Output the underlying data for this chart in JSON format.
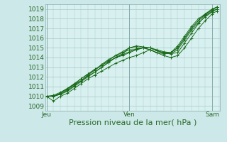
{
  "bg_color": "#cce8e8",
  "plot_bg_color": "#d8f0f0",
  "grid_color": "#a8c8c8",
  "line_color": "#1a6b1a",
  "marker_color": "#1a6b1a",
  "xlabel": "Pression niveau de la mer( hPa )",
  "xtick_labels": [
    "Jeu",
    "Ven",
    "Sam"
  ],
  "xtick_positions": [
    0,
    144,
    288
  ],
  "ytick_min": 1009,
  "ytick_max": 1019,
  "xlim": [
    -2,
    302
  ],
  "ylim": [
    1008.5,
    1019.5
  ],
  "x_label_fontsize": 8,
  "tick_fontsize": 6.5,
  "lines": [
    {
      "x": [
        0,
        12,
        24,
        36,
        48,
        60,
        72,
        84,
        96,
        108,
        120,
        132,
        144,
        156,
        168,
        180,
        192,
        204,
        216,
        228,
        240,
        252,
        264,
        276,
        288,
        296
      ],
      "y": [
        1010.0,
        1010.0,
        1010.2,
        1010.5,
        1011.0,
        1011.5,
        1012.0,
        1012.5,
        1013.0,
        1013.5,
        1014.0,
        1014.2,
        1014.5,
        1014.8,
        1015.0,
        1015.0,
        1014.8,
        1014.6,
        1014.5,
        1015.0,
        1016.0,
        1017.0,
        1017.8,
        1018.5,
        1019.0,
        1019.2
      ]
    },
    {
      "x": [
        0,
        12,
        24,
        36,
        48,
        60,
        72,
        84,
        96,
        108,
        120,
        132,
        144,
        156,
        168,
        180,
        192,
        204,
        216,
        228,
        240,
        252,
        264,
        276,
        288,
        296
      ],
      "y": [
        1010.0,
        1010.1,
        1010.4,
        1010.8,
        1011.2,
        1011.8,
        1012.3,
        1012.7,
        1013.2,
        1013.6,
        1014.0,
        1014.3,
        1014.6,
        1014.9,
        1015.0,
        1015.0,
        1014.7,
        1014.5,
        1014.4,
        1014.5,
        1015.5,
        1016.5,
        1017.5,
        1018.3,
        1018.8,
        1019.0
      ]
    },
    {
      "x": [
        0,
        12,
        24,
        36,
        48,
        60,
        72,
        84,
        96,
        108,
        120,
        132,
        144,
        156,
        168,
        180,
        192,
        204,
        216,
        228,
        240,
        252,
        264,
        276,
        288,
        296
      ],
      "y": [
        1010.0,
        1009.5,
        1010.0,
        1010.3,
        1010.8,
        1011.3,
        1011.8,
        1012.2,
        1012.6,
        1013.0,
        1013.4,
        1013.7,
        1014.0,
        1014.2,
        1014.5,
        1014.8,
        1014.5,
        1014.2,
        1014.0,
        1014.2,
        1015.0,
        1016.0,
        1017.0,
        1017.8,
        1018.5,
        1018.8
      ]
    },
    {
      "x": [
        0,
        12,
        24,
        36,
        48,
        60,
        72,
        84,
        96,
        108,
        120,
        132,
        144,
        156,
        168,
        180,
        192,
        204,
        216,
        228,
        240,
        252,
        264,
        276,
        288,
        296
      ],
      "y": [
        1010.0,
        1010.0,
        1010.3,
        1010.7,
        1011.2,
        1011.6,
        1012.1,
        1012.5,
        1013.0,
        1013.5,
        1014.0,
        1014.4,
        1015.0,
        1015.0,
        1015.0,
        1014.8,
        1014.5,
        1014.5,
        1014.5,
        1015.2,
        1016.2,
        1017.2,
        1018.0,
        1018.5,
        1019.0,
        1019.2
      ]
    },
    {
      "x": [
        0,
        12,
        24,
        36,
        48,
        60,
        72,
        84,
        96,
        108,
        120,
        132,
        144,
        156,
        168,
        180,
        192,
        204,
        216,
        228,
        240,
        252,
        264,
        276,
        288,
        296
      ],
      "y": [
        1010.0,
        1010.0,
        1010.2,
        1010.6,
        1011.1,
        1011.6,
        1012.2,
        1012.7,
        1013.3,
        1013.8,
        1014.2,
        1014.5,
        1014.8,
        1014.8,
        1015.0,
        1014.8,
        1014.5,
        1014.4,
        1014.4,
        1014.8,
        1015.8,
        1016.8,
        1017.6,
        1018.2,
        1018.7,
        1019.0
      ]
    },
    {
      "x": [
        0,
        12,
        24,
        36,
        48,
        60,
        72,
        84,
        96,
        108,
        120,
        132,
        144,
        156,
        168,
        180,
        192,
        204,
        216,
        228,
        240,
        252,
        264,
        276,
        288,
        296
      ],
      "y": [
        1010.0,
        1010.0,
        1010.3,
        1010.8,
        1011.3,
        1011.8,
        1012.3,
        1012.8,
        1013.2,
        1013.7,
        1014.2,
        1014.6,
        1015.0,
        1015.2,
        1015.1,
        1015.0,
        1014.7,
        1014.5,
        1014.5,
        1015.0,
        1016.0,
        1017.0,
        1017.8,
        1018.4,
        1018.9,
        1019.2
      ]
    }
  ]
}
